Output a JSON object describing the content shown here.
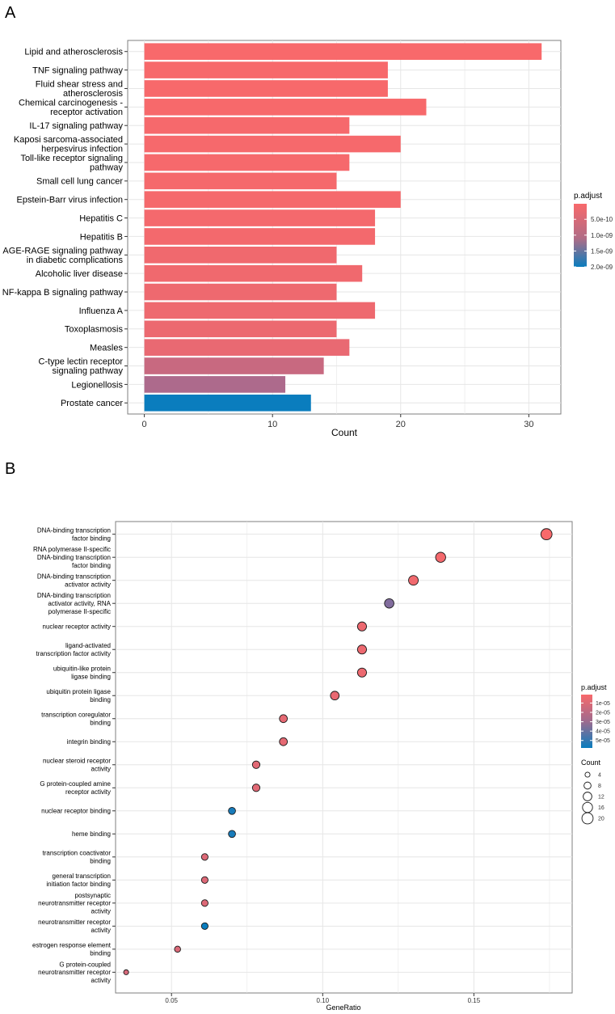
{
  "panel_a": {
    "letter": "A",
    "chart_data": {
      "type": "bar",
      "orientation": "horizontal",
      "xlabel": "Count",
      "ylabel": "",
      "xlim": [
        -1.3,
        32.5
      ],
      "xticks": [
        0,
        10,
        20,
        30
      ],
      "grid": true,
      "categories": [
        "Lipid and atherosclerosis",
        "TNF signaling pathway",
        "Fluid shear stress and\natherosclerosis",
        "Chemical carcinogenesis -\nreceptor activation",
        "IL-17 signaling pathway",
        "Kaposi sarcoma-associated\nherpesvirus infection",
        "Toll-like receptor signaling\npathway",
        "Small cell lung cancer",
        "Epstein-Barr virus infection",
        "Hepatitis C",
        "Hepatitis B",
        "AGE-RAGE signaling pathway\nin diabetic complications",
        "Alcoholic liver disease",
        "NF-kappa B signaling pathway",
        "Influenza A",
        "Toxoplasmosis",
        "Measles",
        "C-type lectin receptor\nsignaling pathway",
        "Legionellosis",
        "Prostate cancer"
      ],
      "values": [
        31,
        19,
        19,
        22,
        16,
        20,
        16,
        15,
        20,
        18,
        18,
        15,
        17,
        15,
        18,
        15,
        16,
        14,
        11,
        13
      ],
      "p_adjust": [
        1e-11,
        2e-11,
        2e-11,
        2e-11,
        3e-11,
        3e-11,
        3e-11,
        4e-11,
        4e-11,
        5e-11,
        6e-11,
        8e-11,
        8e-11,
        1e-10,
        1e-10,
        1.2e-10,
        1.5e-10,
        4.5e-10,
        7e-10,
        2e-09
      ],
      "legend": {
        "title": "p.adjust",
        "placement": "right",
        "ticks": [
          "5.0e-10",
          "1.0e-09",
          "1.5e-09",
          "2.0e-09"
        ],
        "tick_values": [
          5e-10,
          1e-09,
          1.5e-09,
          2e-09
        ],
        "range": [
          1e-11,
          2e-09
        ]
      }
    }
  },
  "panel_b": {
    "letter": "B",
    "chart_data": {
      "type": "scatter",
      "xlabel": "GeneRatio",
      "ylabel": "",
      "xlim": [
        0.0315,
        0.1825
      ],
      "xticks": [
        0.05,
        0.1,
        0.15
      ],
      "xtick_labels": [
        "0.05",
        "0.10",
        "0.15"
      ],
      "grid": true,
      "categories": [
        "DNA-binding transcription\nfactor binding",
        "RNA polymerase II-specific\nDNA-binding transcription\nfactor binding",
        "DNA-binding transcription\nactivator activity",
        "DNA-binding transcription\nactivator activity, RNA\npolymerase II-specific",
        "nuclear receptor activity",
        "ligand-activated\ntranscription factor activity",
        "ubiquitin-like protein\nligase binding",
        "ubiquitin protein ligase\nbinding",
        "transcription coregulator\nbinding",
        "integrin binding",
        "nuclear steroid receptor\nactivity",
        "G protein-coupled amine\nreceptor activity",
        "nuclear receptor binding",
        "heme binding",
        "transcription coactivator\nbinding",
        "general transcription\ninitiation factor binding",
        "postsynaptic\nneurotransmitter receptor\nactivity",
        "neurotransmitter receptor\nactivity",
        "estrogen response element\nbinding",
        "G protein-coupled\nneurotransmitter receptor\nactivity"
      ],
      "gene_ratio": [
        0.174,
        0.139,
        0.13,
        0.122,
        0.113,
        0.113,
        0.113,
        0.104,
        0.087,
        0.087,
        0.078,
        0.078,
        0.07,
        0.07,
        0.061,
        0.061,
        0.061,
        0.061,
        0.052,
        0.035
      ],
      "count": [
        20,
        16,
        15,
        14,
        13,
        13,
        13,
        12,
        10,
        10,
        9,
        9,
        8,
        8,
        7,
        7,
        7,
        7,
        6,
        4
      ],
      "p_adjust": [
        1e-06,
        2e-06,
        3e-06,
        3.2e-05,
        4e-06,
        4e-06,
        4e-06,
        5e-06,
        6e-06,
        6e-06,
        7e-06,
        7e-06,
        5.5e-05,
        5.5e-05,
        8e-06,
        8e-06,
        8e-06,
        5.8e-05,
        9e-06,
        1e-05
      ],
      "legend_color": {
        "title": "p.adjust",
        "placement": "right",
        "ticks": [
          "1e-05",
          "2e-05",
          "3e-05",
          "4e-05",
          "5e-05"
        ],
        "tick_values": [
          1e-05,
          2e-05,
          3e-05,
          4e-05,
          5e-05
        ],
        "range": [
          1e-06,
          5.8e-05
        ]
      },
      "legend_size": {
        "title": "Count",
        "placement": "right",
        "ticks": [
          "4",
          "8",
          "12",
          "16",
          "20"
        ],
        "values": [
          4,
          8,
          12,
          16,
          20
        ]
      }
    }
  },
  "colors": {
    "low": "#F8696B",
    "mid": "#8C6A9A",
    "high": "#0A7DBE",
    "grid": "#E6E6E6",
    "axis_text": "#000000",
    "panel_border": "#7F7F7F"
  }
}
